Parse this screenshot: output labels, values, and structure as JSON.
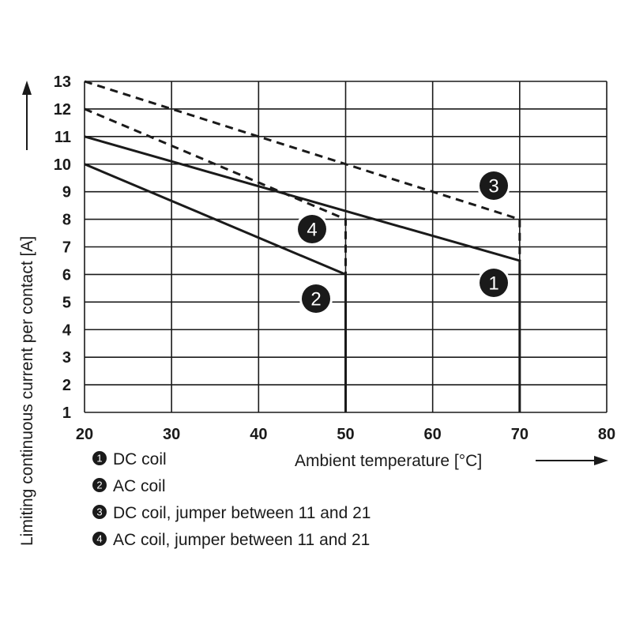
{
  "chart_data": {
    "type": "line",
    "xlabel": "Ambient temperature [°C]",
    "ylabel": "Limiting continuous current per contact [A]",
    "xlim": [
      20,
      80
    ],
    "ylim": [
      1,
      13
    ],
    "xticks": [
      "20",
      "30",
      "40",
      "50",
      "60",
      "70",
      "80"
    ],
    "yticks": [
      "1",
      "2",
      "3",
      "4",
      "5",
      "6",
      "7",
      "8",
      "9",
      "10",
      "11",
      "12",
      "13"
    ],
    "grid": true,
    "legend_placement": "bottom-left",
    "series": [
      {
        "marker": "1",
        "name": "DC coil",
        "style": "solid",
        "points": [
          [
            20,
            11
          ],
          [
            70,
            6.5
          ],
          [
            70,
            1
          ]
        ]
      },
      {
        "marker": "2",
        "name": "AC coil",
        "style": "solid",
        "points": [
          [
            20,
            10
          ],
          [
            50,
            6
          ],
          [
            50,
            1
          ]
        ]
      },
      {
        "marker": "3",
        "name": "DC coil, jumper between 11 and 21",
        "style": "dashed",
        "points": [
          [
            20,
            13
          ],
          [
            70,
            8
          ],
          [
            70,
            6.5
          ]
        ]
      },
      {
        "marker": "4",
        "name": "AC coil, jumper between 11 and 21",
        "style": "dashed",
        "points": [
          [
            20,
            12
          ],
          [
            50,
            8
          ],
          [
            50,
            6
          ]
        ]
      }
    ],
    "color": "#1a1a1a"
  }
}
